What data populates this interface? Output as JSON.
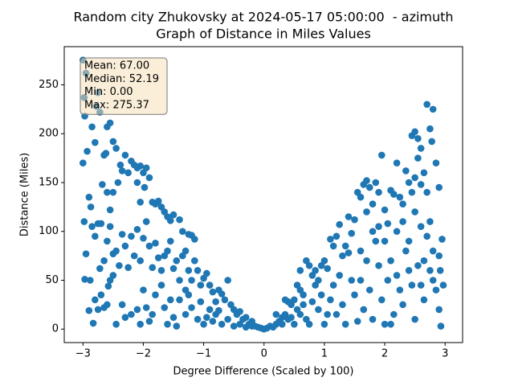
{
  "chart_data": {
    "type": "scatter",
    "title": "Random city Zhukovsky at 2024-05-17 05:00:00  - azimuth",
    "subtitle": "Graph of Distance in Miles Values",
    "x_label": "Degree Difference (Scaled by 100)",
    "y_label": "Distance (Miles)",
    "annotation": [
      "Mean: 67.00",
      "Median: 52.19",
      "Min: 0.00",
      "Max: 275.37"
    ],
    "color": "#1f77b4",
    "xlim": [
      -3.31,
      3.29
    ],
    "ylim": [
      -13.8,
      289.1
    ],
    "xticks": [
      {
        "value": -3,
        "label": "−3"
      },
      {
        "value": -2,
        "label": "−2"
      },
      {
        "value": -1,
        "label": "−1"
      },
      0,
      1,
      2,
      3
    ],
    "yticks": [
      0,
      50,
      100,
      150,
      200,
      250
    ],
    "x": [
      -3.0,
      -2.98,
      -2.95,
      -2.97,
      -2.93,
      -3.0,
      -2.9,
      -2.87,
      -2.98,
      -2.95,
      -2.97,
      -2.85,
      -2.8,
      -2.75,
      -2.78,
      -2.72,
      -2.65,
      -2.62,
      -2.6,
      -2.55,
      -2.5,
      -2.45,
      -2.68,
      -2.6,
      -2.55,
      -2.5,
      -2.42,
      -2.38,
      -2.35,
      -2.3,
      -2.25,
      -2.2,
      -2.15,
      -2.1,
      -2.05,
      -2.0,
      -1.98,
      -2.05,
      -2.1,
      -1.95,
      -1.9,
      -1.85,
      -1.8,
      -1.75,
      -1.7,
      -1.65,
      -1.6,
      -1.55,
      -1.5,
      -1.4,
      -1.35,
      -1.25,
      -1.2,
      -1.15,
      -2.85,
      -2.8,
      -2.75,
      -2.7,
      -2.65,
      -2.6,
      -2.55,
      -2.5,
      -2.45,
      -2.4,
      -2.35,
      -2.3,
      -2.25,
      -2.2,
      -2.15,
      -2.1,
      -2.05,
      -2.0,
      -1.95,
      -1.9,
      -1.85,
      -1.8,
      -1.75,
      -1.7,
      -1.65,
      -1.6,
      -1.55,
      -1.5,
      -1.45,
      -1.4,
      -1.35,
      -1.3,
      -1.25,
      -1.2,
      -1.15,
      -1.1,
      -1.05,
      -1.0,
      -0.95,
      -0.9,
      -0.85,
      -0.8,
      -0.75,
      -0.7,
      -0.65,
      -0.6,
      -0.55,
      -0.5,
      -0.45,
      -0.4,
      -0.35,
      -0.3,
      -0.25,
      -0.2,
      -0.15,
      -0.1,
      -0.05,
      0,
      -2.88,
      -2.8,
      -2.75,
      -2.7,
      -2.65,
      -2.6,
      -2.55,
      -2.5,
      -2.45,
      -2.35,
      -2.3,
      -2.2,
      -2.1,
      -2.05,
      -2.0,
      -1.95,
      -1.9,
      -1.85,
      -1.8,
      -1.7,
      -1.65,
      -1.6,
      -1.55,
      -1.5,
      -1.45,
      -1.4,
      -1.3,
      -1.25,
      -1.2,
      -1.1,
      -1.05,
      -1.0,
      -0.95,
      -0.9,
      -0.85,
      -0.8,
      -0.7,
      -0.6,
      -0.5,
      -0.4,
      -0.3,
      -0.2,
      -2.83,
      -2.9,
      -2.72,
      -2.58,
      -1.3,
      -0.75,
      0.05,
      0.1,
      0.15,
      0.2,
      0.25,
      0.3,
      0.35,
      0.4,
      0.45,
      0.5,
      0.55,
      0.6,
      0.65,
      0.7,
      0.75,
      0.8,
      0.85,
      0.9,
      0.95,
      1.0,
      1.05,
      1.1,
      1.15,
      1.2,
      1.25,
      1.3,
      1.35,
      1.4,
      1.45,
      1.5,
      1.55,
      1.6,
      1.65,
      1.7,
      1.75,
      1.8,
      1.85,
      1.9,
      1.95,
      2.0,
      2.05,
      2.1,
      2.15,
      2.2,
      2.25,
      2.3,
      2.35,
      2.4,
      2.45,
      2.5,
      2.55,
      2.6,
      2.65,
      2.7,
      2.75,
      2.8,
      2.85,
      2.9,
      2.78,
      2.55,
      2.5,
      2.45,
      2.6,
      2.7,
      0.3,
      0.4,
      0.5,
      0.6,
      0.7,
      0.8,
      0.9,
      1.0,
      1.1,
      1.2,
      1.3,
      1.35,
      1.45,
      1.5,
      1.55,
      1.6,
      1.65,
      1.7,
      1.75,
      1.8,
      1.85,
      1.9,
      1.95,
      2.0,
      2.05,
      2.1,
      2.15,
      2.2,
      2.25,
      2.3,
      2.35,
      2.4,
      2.45,
      2.5,
      2.55,
      2.6,
      2.65,
      2.7,
      2.75,
      2.8,
      2.85,
      2.9,
      2.95,
      2.97,
      2.93,
      2.92,
      0.45,
      0.55,
      0.65,
      0.75,
      0.85,
      0.95,
      1.05,
      1.15,
      1.25,
      1.4,
      1.6,
      1.7,
      1.8,
      1.9,
      2.0,
      2.1,
      2.2,
      2.3,
      2.4,
      2.5,
      2.6,
      2.65,
      2.75,
      2.8,
      2.9,
      0.2,
      0.35,
      0.6
    ],
    "values": [
      275.37,
      237,
      262,
      218,
      182,
      170,
      135,
      125,
      110,
      77,
      51,
      207,
      191,
      242,
      228,
      222,
      178,
      180,
      207,
      211,
      192,
      185,
      148,
      140,
      122,
      140,
      150,
      168,
      162,
      178,
      160,
      172,
      168,
      165,
      167,
      160,
      145,
      130,
      150,
      165,
      155,
      130,
      128,
      131,
      125,
      120,
      115,
      111,
      117,
      112,
      100,
      97,
      96,
      92,
      105,
      95,
      108,
      108,
      70,
      90,
      105,
      77,
      80,
      65,
      97,
      85,
      63,
      95,
      75,
      102,
      70,
      93,
      110,
      85,
      63,
      88,
      73,
      60,
      75,
      80,
      90,
      62,
      70,
      50,
      75,
      80,
      60,
      50,
      70,
      60,
      45,
      52,
      57,
      45,
      38,
      28,
      40,
      36,
      30,
      50,
      25,
      20,
      15,
      18,
      10,
      12,
      5,
      8,
      3,
      2,
      1,
      0,
      50,
      30,
      20,
      35,
      22,
      25,
      50,
      55,
      5,
      25,
      12,
      15,
      20,
      5,
      40,
      22,
      8,
      15,
      35,
      45,
      22,
      5,
      30,
      12,
      3,
      30,
      15,
      35,
      22,
      10,
      28,
      5,
      12,
      20,
      8,
      15,
      5,
      10,
      3,
      5,
      2,
      3,
      6,
      19,
      62,
      44,
      40,
      19,
      1,
      3,
      2,
      5,
      8,
      12,
      15,
      10,
      25,
      30,
      20,
      40,
      35,
      70,
      65,
      55,
      60,
      50,
      65,
      70,
      62,
      92,
      85,
      95,
      107,
      75,
      85,
      115,
      98,
      112,
      140,
      135,
      148,
      152,
      145,
      128,
      150,
      140,
      178,
      122,
      108,
      142,
      138,
      170,
      135,
      128,
      162,
      150,
      198,
      202,
      195,
      185,
      160,
      230,
      205,
      225,
      170,
      145,
      192,
      175,
      155,
      140,
      148,
      140,
      5,
      28,
      5,
      15,
      10,
      28,
      20,
      5,
      30,
      15,
      25,
      5,
      50,
      35,
      8,
      50,
      20,
      70,
      40,
      10,
      90,
      65,
      30,
      5,
      50,
      70,
      15,
      100,
      40,
      25,
      80,
      60,
      45,
      10,
      65,
      45,
      30,
      95,
      60,
      80,
      40,
      20,
      92,
      45,
      3,
      60,
      12,
      45,
      25,
      5,
      45,
      35,
      15,
      45,
      55,
      78,
      80,
      120,
      100,
      105,
      90,
      5,
      55,
      110,
      90,
      120,
      105,
      70,
      110,
      50,
      75,
      15,
      30,
      60
    ]
  }
}
